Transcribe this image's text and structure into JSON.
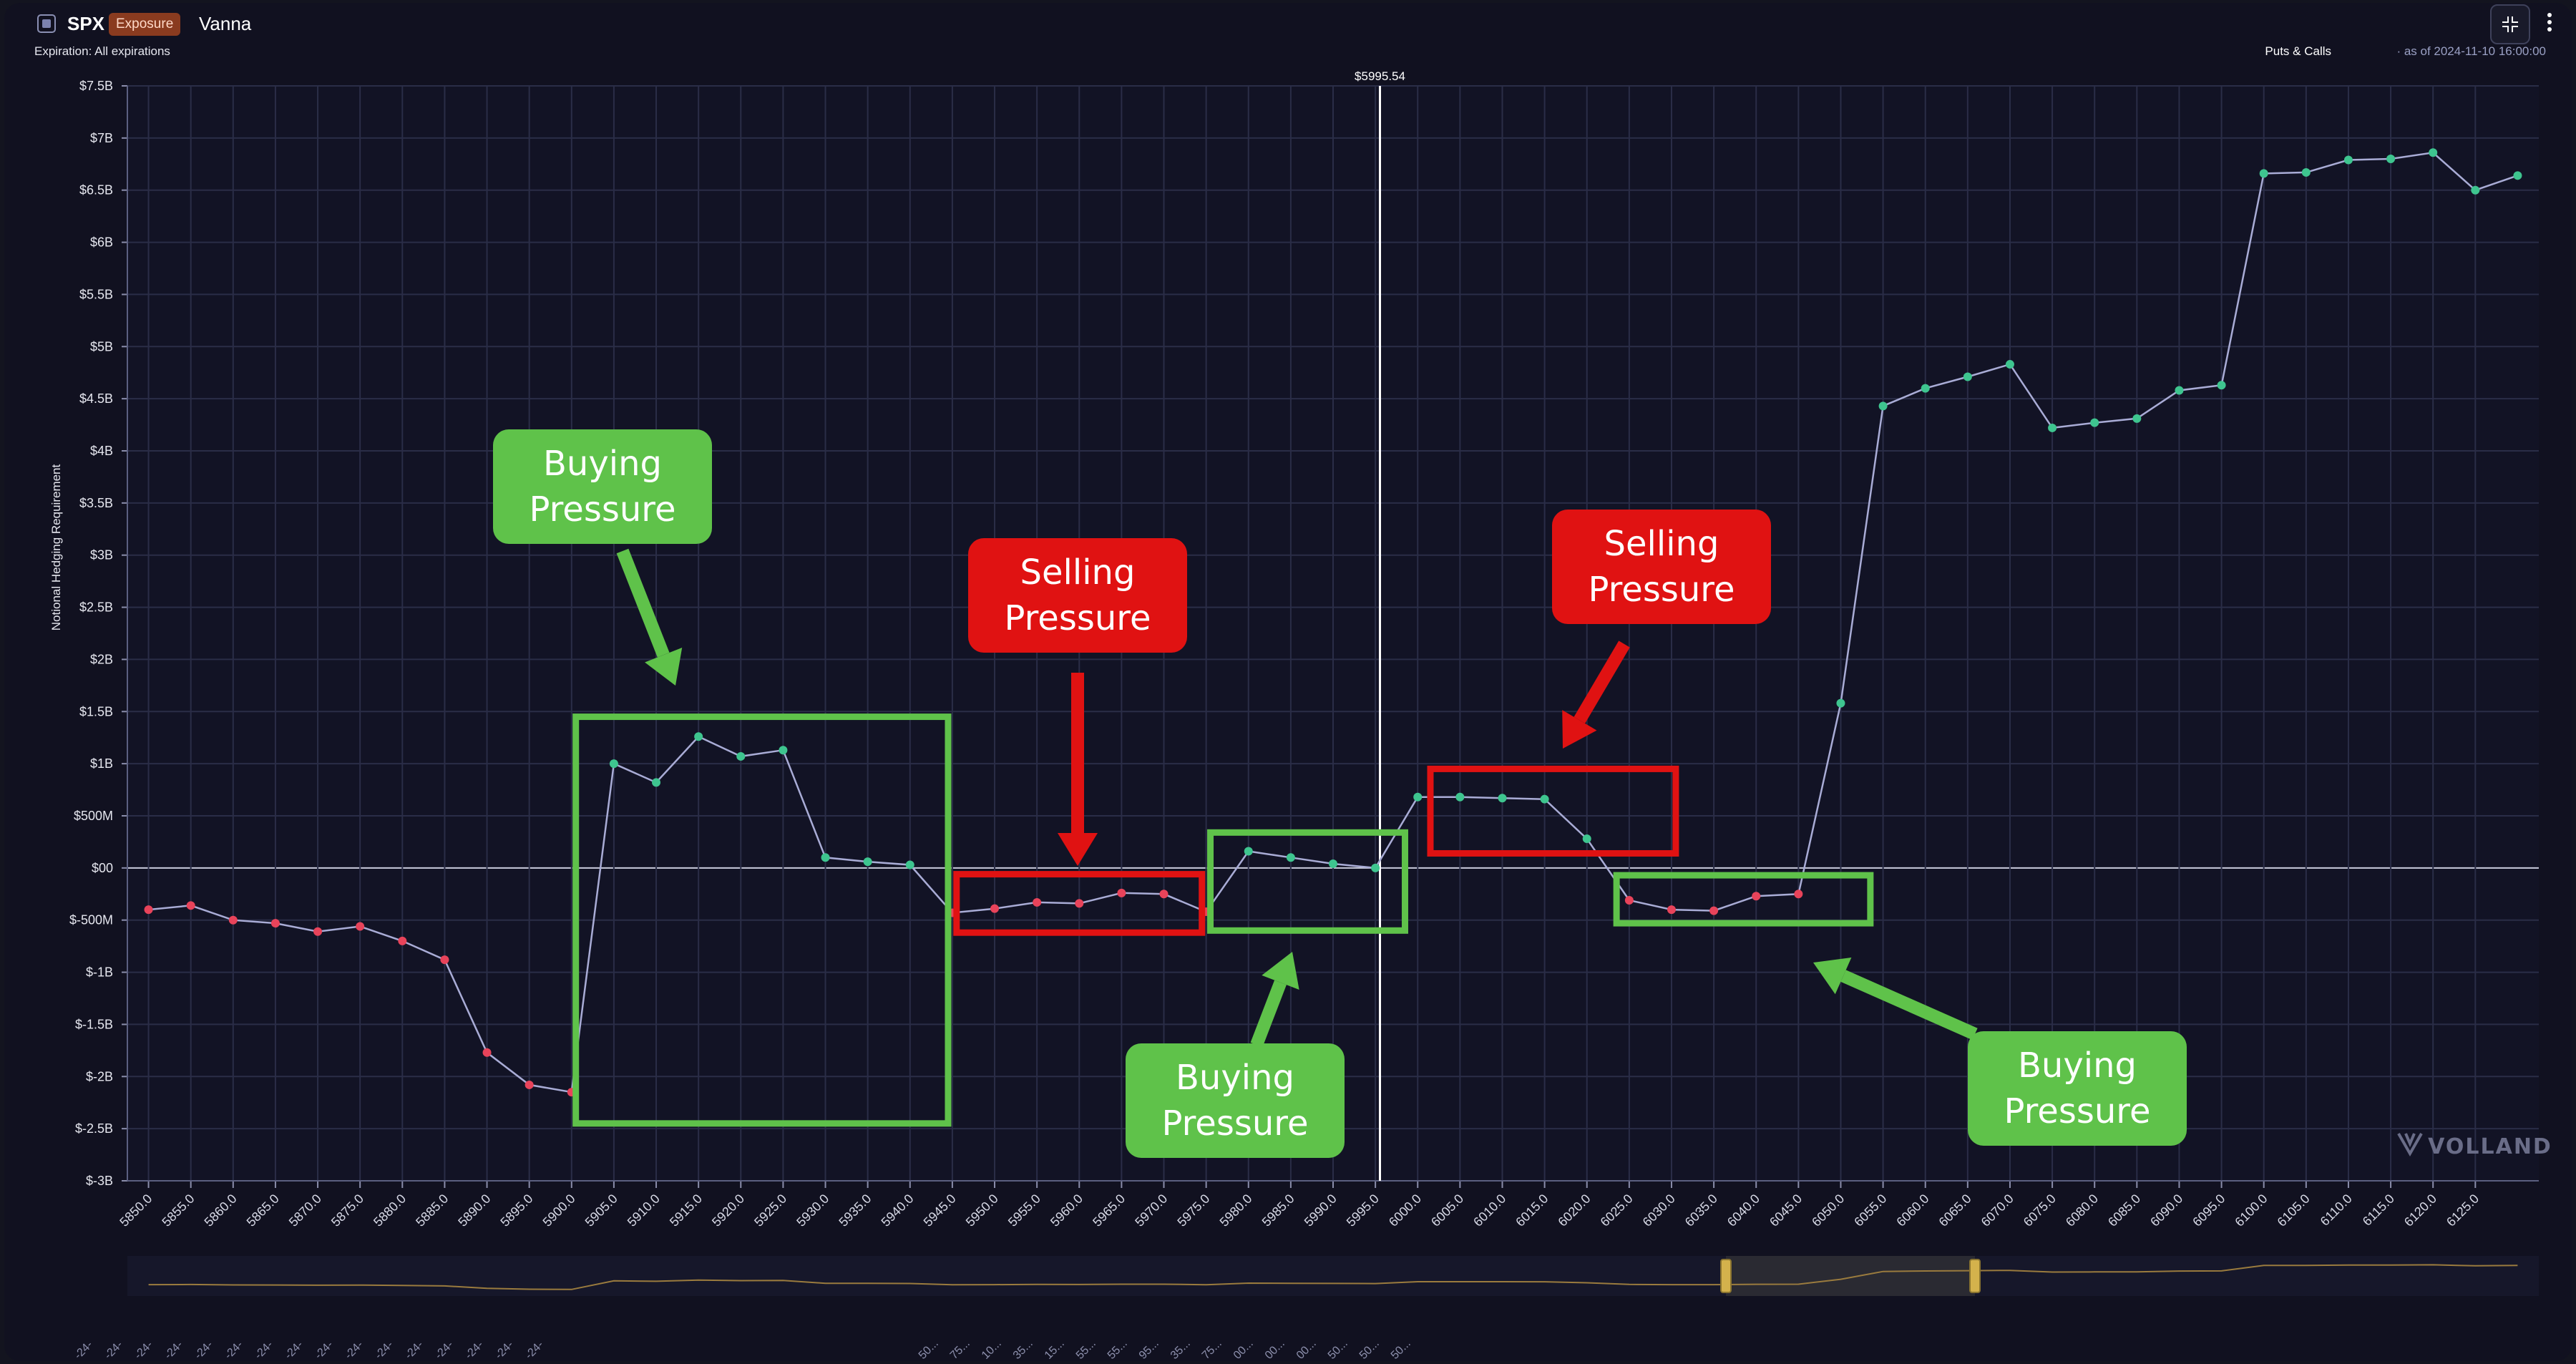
{
  "header": {
    "symbol": "SPX",
    "badge": "Exposure",
    "metric": "Vanna",
    "expiration": "Expiration: All expirations",
    "puts_calls": "Puts & Calls",
    "as_of": "· as of 2024-11-10 16:00:00",
    "fullscreen_icon": "collapse-icon",
    "menu_icon": "more-vertical-icon"
  },
  "colors": {
    "line": "#a9acd6",
    "negative_point": "#e8435a",
    "positive_point": "#3ec58f",
    "buying_box": "#5fc24a",
    "selling_box": "#e01212",
    "spot_line": "#ffffff"
  },
  "watermark": "VOLLAND",
  "chart_data": {
    "type": "line",
    "xlabel": "",
    "ylabel": "Notional Hedging Requirement",
    "ylim": [
      -3000000000,
      7500000000
    ],
    "yticks": [
      {
        "v": 7500000000,
        "label": "$7.5B"
      },
      {
        "v": 7000000000,
        "label": "$7B"
      },
      {
        "v": 6500000000,
        "label": "$6.5B"
      },
      {
        "v": 6000000000,
        "label": "$6B"
      },
      {
        "v": 5500000000,
        "label": "$5.5B"
      },
      {
        "v": 5000000000,
        "label": "$5B"
      },
      {
        "v": 4500000000,
        "label": "$4.5B"
      },
      {
        "v": 4000000000,
        "label": "$4B"
      },
      {
        "v": 3500000000,
        "label": "$3.5B"
      },
      {
        "v": 3000000000,
        "label": "$3B"
      },
      {
        "v": 2500000000,
        "label": "$2.5B"
      },
      {
        "v": 2000000000,
        "label": "$2B"
      },
      {
        "v": 1500000000,
        "label": "$1.5B"
      },
      {
        "v": 1000000000,
        "label": "$1B"
      },
      {
        "v": 500000000,
        "label": "$500M"
      },
      {
        "v": 0,
        "label": "$00"
      },
      {
        "v": -500000000,
        "label": "$-500M"
      },
      {
        "v": -1000000000,
        "label": "$-1B"
      },
      {
        "v": -1500000000,
        "label": "$-1.5B"
      },
      {
        "v": -2000000000,
        "label": "$-2B"
      },
      {
        "v": -2500000000,
        "label": "$-2.5B"
      },
      {
        "v": -3000000000,
        "label": "$-3B"
      }
    ],
    "x_range": [
      5847.5,
      6132.5
    ],
    "xticks": [
      "5850.0",
      "5855.0",
      "5860.0",
      "5865.0",
      "5870.0",
      "5875.0",
      "5880.0",
      "5885.0",
      "5890.0",
      "5895.0",
      "5900.0",
      "5905.0",
      "5910.0",
      "5915.0",
      "5920.0",
      "5925.0",
      "5930.0",
      "5935.0",
      "5940.0",
      "5945.0",
      "5950.0",
      "5955.0",
      "5960.0",
      "5965.0",
      "5970.0",
      "5975.0",
      "5980.0",
      "5985.0",
      "5990.0",
      "5995.0",
      "6000.0",
      "6005.0",
      "6010.0",
      "6015.0",
      "6020.0",
      "6025.0",
      "6030.0",
      "6035.0",
      "6040.0",
      "6045.0",
      "6050.0",
      "6055.0",
      "6060.0",
      "6065.0",
      "6070.0",
      "6075.0",
      "6080.0",
      "6085.0",
      "6090.0",
      "6095.0",
      "6100.0",
      "6105.0",
      "6110.0",
      "6115.0",
      "6120.0",
      "6125.0"
    ],
    "spot": 5995.54,
    "spot_label": "$5995.54",
    "series": [
      {
        "points": [
          [
            5850,
            -400000000
          ],
          [
            5855,
            -360000000
          ],
          [
            5860,
            -500000000
          ],
          [
            5865,
            -530000000
          ],
          [
            5870,
            -610000000
          ],
          [
            5875,
            -560000000
          ],
          [
            5880,
            -700000000
          ],
          [
            5885,
            -880000000
          ],
          [
            5890,
            -1770000000
          ],
          [
            5895,
            -2080000000
          ],
          [
            5900,
            -2150000000
          ],
          [
            5905,
            1000000000
          ],
          [
            5910,
            820000000
          ],
          [
            5915,
            1260000000
          ],
          [
            5920,
            1070000000
          ],
          [
            5925,
            1130000000
          ],
          [
            5930,
            100000000
          ],
          [
            5935,
            60000000
          ],
          [
            5940,
            30000000
          ],
          [
            5945,
            -430000000
          ],
          [
            5950,
            -390000000
          ],
          [
            5955,
            -330000000
          ],
          [
            5960,
            -340000000
          ],
          [
            5965,
            -240000000
          ],
          [
            5970,
            -250000000
          ],
          [
            5975,
            -420000000
          ],
          [
            5980,
            160000000
          ],
          [
            5985,
            100000000
          ],
          [
            5990,
            40000000
          ],
          [
            5995,
            0
          ],
          [
            6000,
            680000000
          ],
          [
            6005,
            680000000
          ],
          [
            6010,
            670000000
          ],
          [
            6015,
            660000000
          ],
          [
            6020,
            280000000
          ],
          [
            6025,
            -310000000
          ],
          [
            6030,
            -400000000
          ],
          [
            6035,
            -410000000
          ],
          [
            6040,
            -270000000
          ],
          [
            6045,
            -250000000
          ],
          [
            6050,
            1580000000
          ],
          [
            6055,
            4430000000
          ],
          [
            6060,
            4600000000
          ],
          [
            6065,
            4710000000
          ],
          [
            6070,
            4830000000
          ],
          [
            6075,
            4220000000
          ],
          [
            6080,
            4270000000
          ],
          [
            6085,
            4310000000
          ],
          [
            6090,
            4580000000
          ],
          [
            6095,
            4630000000
          ],
          [
            6100,
            6660000000
          ],
          [
            6105,
            6670000000
          ],
          [
            6110,
            6790000000
          ],
          [
            6115,
            6800000000
          ],
          [
            6120,
            6860000000
          ],
          [
            6125,
            6500000000
          ],
          [
            6130,
            6640000000
          ]
        ],
        "colored_by_sign": true
      }
    ],
    "annotations": [
      {
        "kind": "buying",
        "box_x": [
          5900.5,
          5944.5
        ],
        "box_y": [
          -2450000000,
          1450000000
        ],
        "label_lines": [
          "Buying",
          "Pressure"
        ]
      },
      {
        "kind": "selling",
        "box_x": [
          5945.5,
          5974.5
        ],
        "box_y": [
          -620000000,
          -60000000
        ],
        "label_lines": [
          "Selling",
          "Pressure"
        ]
      },
      {
        "kind": "buying",
        "box_x": [
          5975.5,
          5998.5
        ],
        "box_y": [
          -600000000,
          340000000
        ],
        "label_lines": [
          "Buying",
          "Pressure"
        ]
      },
      {
        "kind": "selling",
        "box_x": [
          6001.5,
          6030.5
        ],
        "box_y": [
          140000000,
          950000000
        ],
        "label_lines": [
          "Selling",
          "Pressure"
        ]
      },
      {
        "kind": "buying",
        "box_x": [
          6023.5,
          6053.5
        ],
        "box_y": [
          -530000000,
          -70000000
        ],
        "label_lines": [
          "Buying",
          "Pressure"
        ]
      }
    ],
    "grid": true,
    "legend": "none"
  },
  "navigator": {
    "row_labels_left": [
      "-24-",
      "-24-",
      "-24-",
      "-24-",
      "-24-",
      "-24-",
      "-24-",
      "-24-",
      "-24-",
      "-24-",
      "-24-",
      "-24-",
      "-24-",
      "-24-",
      "-24-",
      "-24-"
    ],
    "row_labels_right": [
      "50...",
      "75...",
      "10...",
      "35...",
      "15...",
      "55...",
      "55...",
      "95...",
      "35...",
      "75...",
      "00...",
      "00...",
      "00...",
      "50...",
      "50...",
      "50..."
    ]
  }
}
